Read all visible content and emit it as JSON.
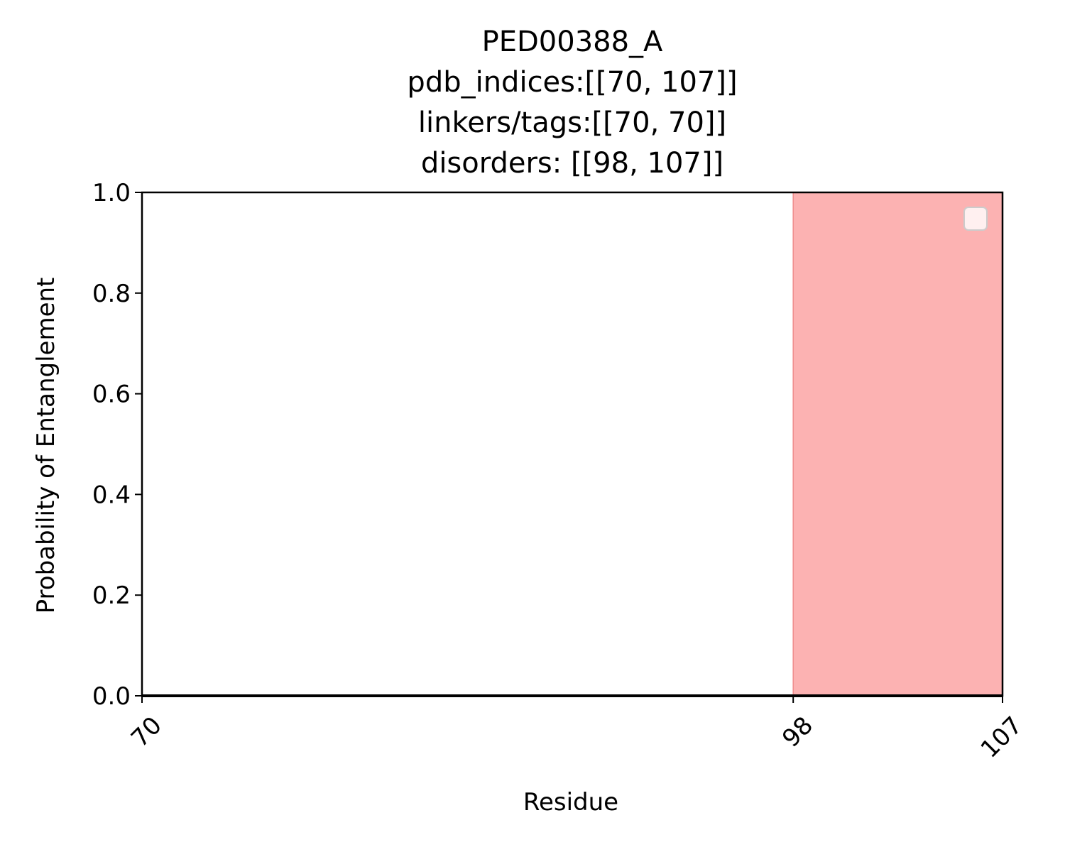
{
  "chart_data": {
    "type": "line",
    "title_lines": [
      "PED00388_A",
      "pdb_indices:[[70, 107]]",
      "linkers/tags:[[70, 70]]",
      "disorders: [[98, 107]]"
    ],
    "xlabel": "Residue",
    "ylabel": "Probability of Entanglement",
    "xlim": [
      70,
      107
    ],
    "ylim": [
      0,
      1.0
    ],
    "x_ticks": [
      70,
      98,
      107
    ],
    "x_tick_labels": [
      "70",
      "98",
      "107"
    ],
    "y_ticks": [
      0.0,
      0.2,
      0.4,
      0.6,
      0.8,
      1.0
    ],
    "y_tick_labels": [
      "0.0",
      "0.2",
      "0.4",
      "0.6",
      "0.8",
      "1.0"
    ],
    "series": [
      {
        "x": [
          70,
          107
        ],
        "y": [
          0,
          0
        ],
        "color": "#000000"
      }
    ],
    "shaded_regions": [
      {
        "x_start": 98,
        "x_end": 107,
        "color": "#fcb2b2"
      }
    ],
    "legend": {
      "placement": "upper right",
      "entries": []
    },
    "grid": false
  }
}
